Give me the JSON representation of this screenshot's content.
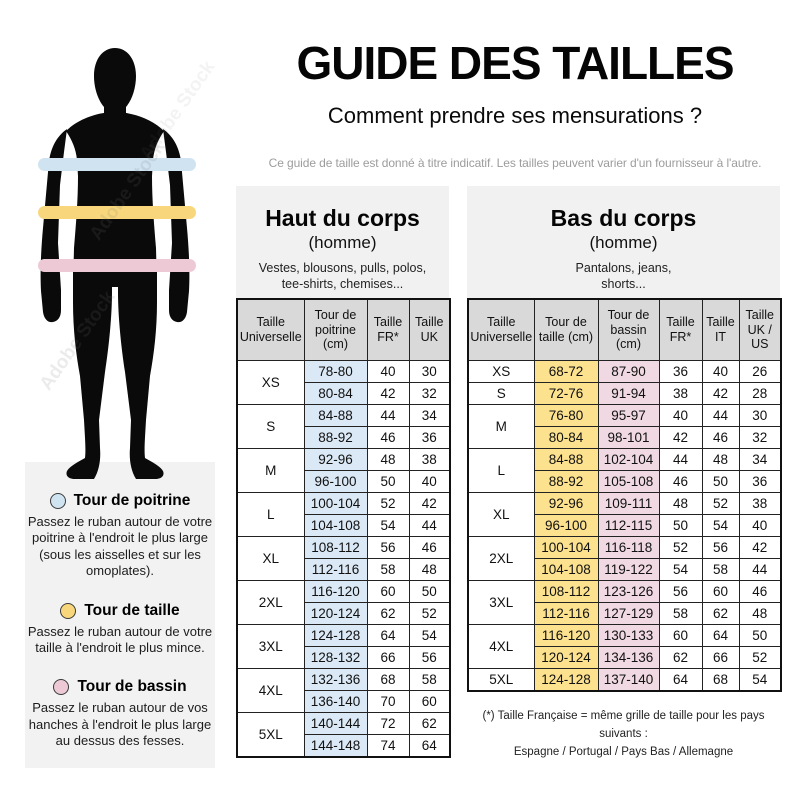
{
  "header": {
    "title": "GUIDE DES TAILLES",
    "subtitle": "Comment prendre ses mensurations ?",
    "note": "Ce guide de taille est donné à titre indicatif. Les tailles peuvent varier d'un fournisseur à l'autre."
  },
  "watermark": {
    "text": "Adobe Stock"
  },
  "figure": {
    "bands": [
      {
        "name": "poitrine",
        "color": "#cfe3f1"
      },
      {
        "name": "taille",
        "color": "#f8d77c"
      },
      {
        "name": "bassin",
        "color": "#ecc9d5"
      }
    ]
  },
  "legend": {
    "items": [
      {
        "label": "Tour de poitrine",
        "color": "#cfe3f1",
        "description": "Passez le ruban autour de votre poitrine à l'endroit le plus large (sous les aisselles et sur les omoplates)."
      },
      {
        "label": "Tour de taille",
        "color": "#f8d77c",
        "description": "Passez le ruban autour de votre taille à l'endroit le plus mince."
      },
      {
        "label": "Tour de bassin",
        "color": "#ecc9d5",
        "description": "Passez le ruban autour de vos hanches à l'endroit le plus large au dessus des fesses."
      }
    ]
  },
  "upper_table": {
    "title": "Haut du corps",
    "subtitle": "(homme)",
    "categories": "Vestes, blousons, pulls, polos,\ntee-shirts, chemises...",
    "headers": [
      "Taille Universelle",
      "Tour de poitrine (cm)",
      "Taille FR*",
      "Taille UK"
    ],
    "measure_col_colors": [
      "#dbe9f6"
    ],
    "groups": [
      {
        "size": "XS",
        "rows": [
          [
            "78-80",
            "40",
            "30"
          ],
          [
            "80-84",
            "42",
            "32"
          ]
        ]
      },
      {
        "size": "S",
        "rows": [
          [
            "84-88",
            "44",
            "34"
          ],
          [
            "88-92",
            "46",
            "36"
          ]
        ]
      },
      {
        "size": "M",
        "rows": [
          [
            "92-96",
            "48",
            "38"
          ],
          [
            "96-100",
            "50",
            "40"
          ]
        ]
      },
      {
        "size": "L",
        "rows": [
          [
            "100-104",
            "52",
            "42"
          ],
          [
            "104-108",
            "54",
            "44"
          ]
        ]
      },
      {
        "size": "XL",
        "rows": [
          [
            "108-112",
            "56",
            "46"
          ],
          [
            "112-116",
            "58",
            "48"
          ]
        ]
      },
      {
        "size": "2XL",
        "rows": [
          [
            "116-120",
            "60",
            "50"
          ],
          [
            "120-124",
            "62",
            "52"
          ]
        ]
      },
      {
        "size": "3XL",
        "rows": [
          [
            "124-128",
            "64",
            "54"
          ],
          [
            "128-132",
            "66",
            "56"
          ]
        ]
      },
      {
        "size": "4XL",
        "rows": [
          [
            "132-136",
            "68",
            "58"
          ],
          [
            "136-140",
            "70",
            "60"
          ]
        ]
      },
      {
        "size": "5XL",
        "rows": [
          [
            "140-144",
            "72",
            "62"
          ],
          [
            "144-148",
            "74",
            "64"
          ]
        ]
      }
    ]
  },
  "lower_table": {
    "title": "Bas du corps",
    "subtitle": "(homme)",
    "categories": "Pantalons, jeans,\nshorts...",
    "headers": [
      "Taille Universelle",
      "Tour de taille (cm)",
      "Tour de bassin (cm)",
      "Taille FR*",
      "Taille IT",
      "Taille UK / US"
    ],
    "measure_col_colors": [
      "#fce18e",
      "#f0d9e2"
    ],
    "groups": [
      {
        "size": "XS",
        "rows": [
          [
            "68-72",
            "87-90",
            "36",
            "40",
            "26"
          ]
        ]
      },
      {
        "size": "S",
        "rows": [
          [
            "72-76",
            "91-94",
            "38",
            "42",
            "28"
          ]
        ]
      },
      {
        "size": "M",
        "rows": [
          [
            "76-80",
            "95-97",
            "40",
            "44",
            "30"
          ],
          [
            "80-84",
            "98-101",
            "42",
            "46",
            "32"
          ]
        ]
      },
      {
        "size": "L",
        "rows": [
          [
            "84-88",
            "102-104",
            "44",
            "48",
            "34"
          ],
          [
            "88-92",
            "105-108",
            "46",
            "50",
            "36"
          ]
        ]
      },
      {
        "size": "XL",
        "rows": [
          [
            "92-96",
            "109-111",
            "48",
            "52",
            "38"
          ],
          [
            "96-100",
            "112-115",
            "50",
            "54",
            "40"
          ]
        ]
      },
      {
        "size": "2XL",
        "rows": [
          [
            "100-104",
            "116-118",
            "52",
            "56",
            "42"
          ],
          [
            "104-108",
            "119-122",
            "54",
            "58",
            "44"
          ]
        ]
      },
      {
        "size": "3XL",
        "rows": [
          [
            "108-112",
            "123-126",
            "56",
            "60",
            "46"
          ],
          [
            "112-116",
            "127-129",
            "58",
            "62",
            "48"
          ]
        ]
      },
      {
        "size": "4XL",
        "rows": [
          [
            "116-120",
            "130-133",
            "60",
            "64",
            "50"
          ],
          [
            "120-124",
            "134-136",
            "62",
            "66",
            "52"
          ]
        ]
      },
      {
        "size": "5XL",
        "rows": [
          [
            "124-128",
            "137-140",
            "64",
            "68",
            "54"
          ]
        ]
      }
    ],
    "footnote_line1": "(*) Taille Française = même grille de taille pour les pays suivants :",
    "footnote_line2": "Espagne / Portugal / Pays Bas / Allemagne"
  }
}
